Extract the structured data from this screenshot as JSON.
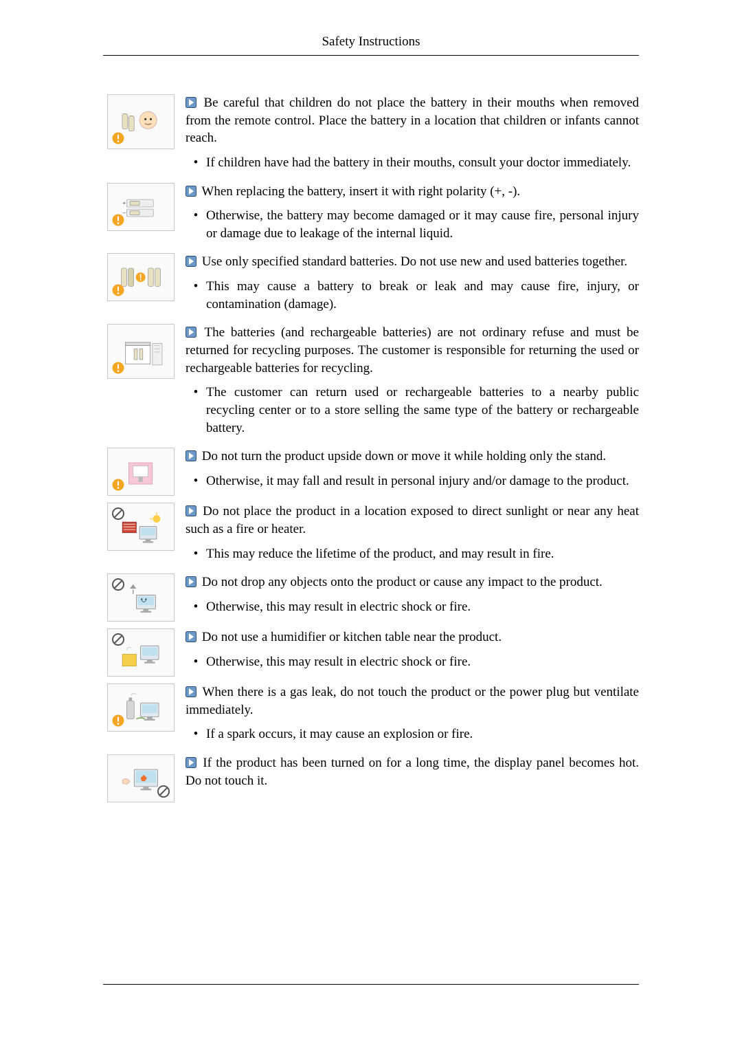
{
  "header": {
    "title": "Safety Instructions"
  },
  "arrow": {
    "fill": "#6d99c6",
    "border": "#2a4e7a",
    "glyph": "#ffffff"
  },
  "warn_badge": {
    "fill": "#f6a623",
    "bang": "#ffffff"
  },
  "prohibit_badge": {
    "ring": "#555555",
    "bg": "#ffffff"
  },
  "icons": {
    "border": "#c8c8c8",
    "bg": "#fafafa",
    "monitor_body": "#dfe8ef",
    "monitor_screen": "#bfe0ef",
    "flame": "#f07030",
    "battery": "#e8e0c0",
    "box_yellow": "#f4cf4a",
    "stand_pink": "#f6c7d8",
    "heater_red": "#cc4433"
  },
  "items": [
    {
      "id": "battery-children",
      "icon": "baby-battery",
      "badge": "warn",
      "lead": "Be careful that children do not place the battery in their mouths when removed from the remote control. Place the battery in a location that children or infants cannot reach.",
      "bullets": [
        "If children have had the battery in their mouths, consult your doctor immediately."
      ]
    },
    {
      "id": "battery-polarity",
      "icon": "polarity",
      "badge": "warn",
      "lead": "When replacing the battery, insert it with right polarity (+, -).",
      "bullets": [
        "Otherwise, the battery may become damaged or it may cause fire, personal injury or damage due to leakage of the internal liquid."
      ]
    },
    {
      "id": "battery-specified",
      "icon": "batteries-mixed",
      "badge": "warn",
      "lead": "Use only specified standard batteries. Do not use new and used batteries together.",
      "bullets": [
        "This may cause a battery to break or leak and may cause fire, injury, or contamination (damage)."
      ]
    },
    {
      "id": "battery-recycle",
      "icon": "recycle-bin",
      "badge": "warn",
      "lead": "The batteries (and rechargeable batteries) are not ordinary refuse and must be returned for recycling purposes. The customer is responsible for returning the used or rechargeable batteries for recycling.",
      "bullets": [
        "The customer can return used or rechargeable batteries to a nearby public recycling center or to a store selling the same type of the battery or rechargeable battery."
      ]
    },
    {
      "id": "upside-down",
      "icon": "upside-down",
      "badge": "warn",
      "lead": "Do not turn the product upside down or move it while holding only the stand.",
      "bullets": [
        "Otherwise, it may fall and result in personal injury and/or damage to the product."
      ]
    },
    {
      "id": "sunlight-heat",
      "icon": "heater-sun",
      "badge": "prohibit",
      "lead": "Do not place the product in a location exposed to direct sunlight or near any heat such as a fire or heater.",
      "bullets": [
        "This may reduce the lifetime of the product, and may result in fire."
      ]
    },
    {
      "id": "drop-objects",
      "icon": "drop-object",
      "badge": "prohibit",
      "lead": "Do not drop any objects onto the product or cause any impact to the product.",
      "bullets": [
        "Otherwise, this may result in electric shock or fire."
      ]
    },
    {
      "id": "humidifier",
      "icon": "humidifier",
      "badge": "prohibit",
      "lead": "Do not use a humidifier or kitchen table near the product.",
      "bullets": [
        "Otherwise, this may result in electric shock or fire."
      ]
    },
    {
      "id": "gas-leak",
      "icon": "gas-leak",
      "badge": "warn",
      "lead": "When there is a gas leak, do not touch the product or the power plug but ventilate immediately.",
      "bullets": [
        "If a spark occurs, it may cause an explosion or fire."
      ]
    },
    {
      "id": "panel-hot",
      "icon": "hot-panel",
      "badge": "prohibit-br",
      "lead": "If the product has been turned on for a long time, the display panel becomes hot. Do not touch it.",
      "bullets": []
    }
  ]
}
